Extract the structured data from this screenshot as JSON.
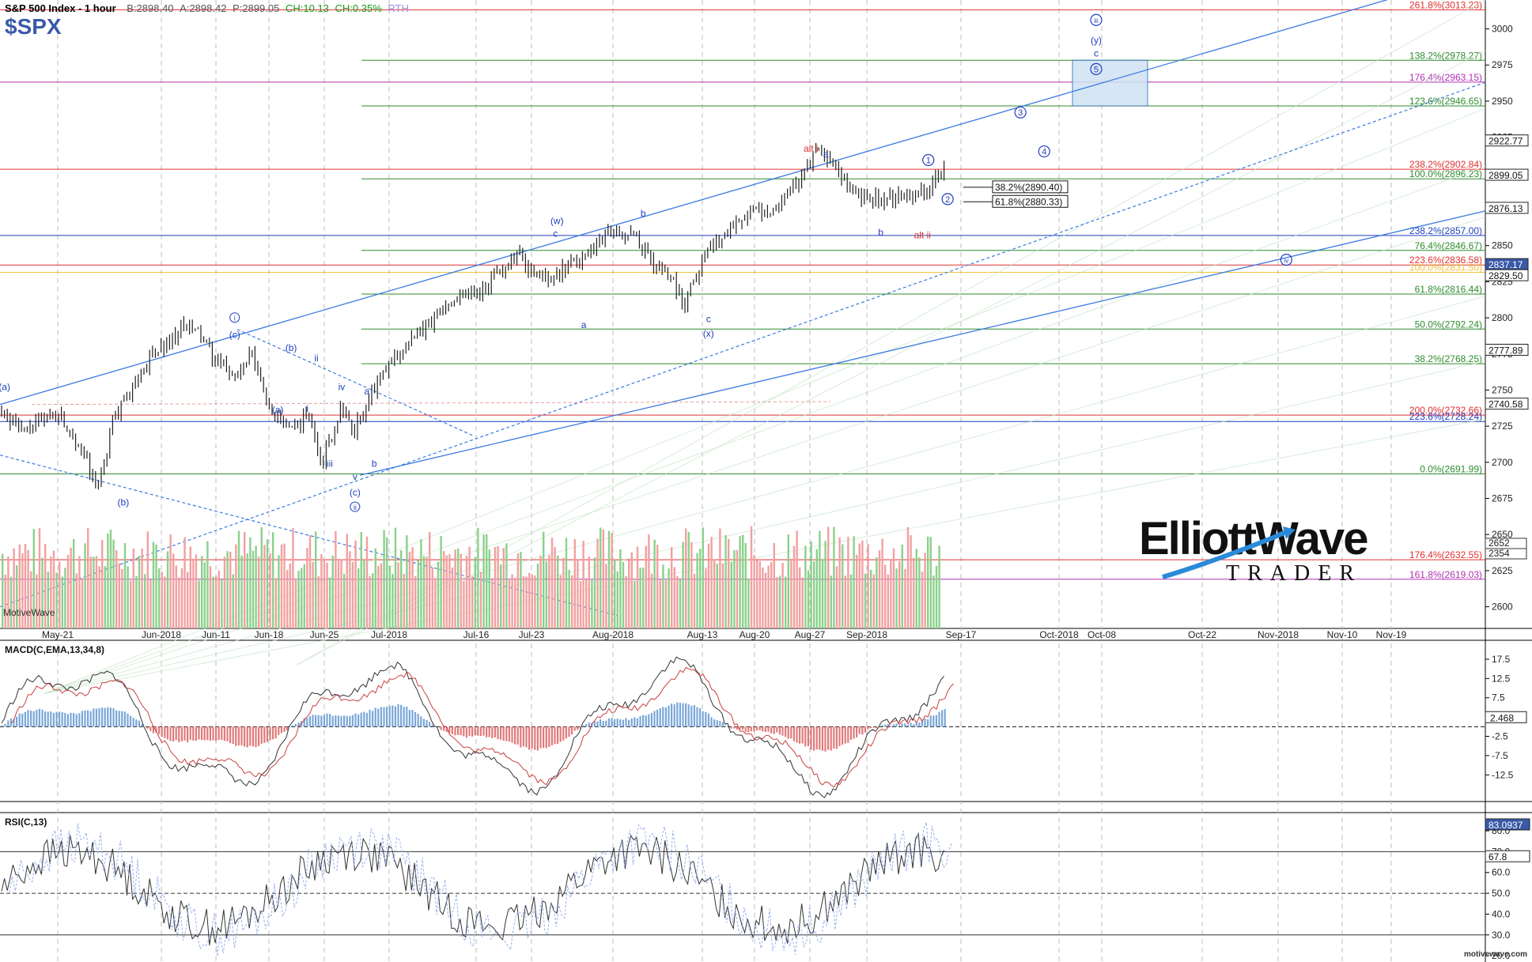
{
  "header": {
    "title": "S&P 500 Index - 1 hour",
    "symbol": "$SPX",
    "bid": "B:2898.40",
    "ask": "A:2898.42",
    "price": "P:2899.05",
    "change": "CH:10.13",
    "change_pct": "CH:0.35%",
    "session": "RTH"
  },
  "watermark": {
    "brand_top": "ElliottWave",
    "brand_bottom": "TRADER",
    "footer": "motivewave.com",
    "app": "MotiveWave"
  },
  "colors": {
    "up": "#2e7d32",
    "down": "#d32f2f",
    "wave": "#1f3fbf",
    "fib_green": "#2e8b2e",
    "fib_red": "#e03030",
    "fib_magenta": "#b030b0"
  },
  "chart_data": [
    {
      "type": "candlestick",
      "title": "S&P 500 Index - 1 hour",
      "x_ticks": [
        "May-21",
        "Jun-2018",
        "Jun-11",
        "Jun-18",
        "Jun-25",
        "Jul-2018",
        "Jul-16",
        "Jul-23",
        "Aug-2018",
        "Aug-13",
        "Aug-20",
        "Aug-27",
        "Sep-2018",
        "Sep-17",
        "Oct-2018",
        "Oct-08",
        "Oct-22",
        "Nov-2018",
        "Nov-10",
        "Nov-19"
      ],
      "ylim": [
        2585,
        3020
      ],
      "y_ticks": [
        2600,
        2625,
        2650,
        2675,
        2700,
        2725,
        2750,
        2775,
        2800,
        2825,
        2850,
        2875,
        2900,
        2925,
        2950,
        2975,
        3000
      ],
      "price_path": [
        [
          0,
          2738
        ],
        [
          0.02,
          2720
        ],
        [
          0.05,
          2735
        ],
        [
          0.07,
          2712
        ],
        [
          0.085,
          2680
        ],
        [
          0.1,
          2730
        ],
        [
          0.13,
          2770
        ],
        [
          0.16,
          2793
        ],
        [
          0.175,
          2790
        ],
        [
          0.19,
          2768
        ],
        [
          0.21,
          2760
        ],
        [
          0.22,
          2775
        ],
        [
          0.235,
          2742
        ],
        [
          0.245,
          2730
        ],
        [
          0.255,
          2720
        ],
        [
          0.27,
          2735
        ],
        [
          0.283,
          2700
        ],
        [
          0.3,
          2740
        ],
        [
          0.31,
          2720
        ],
        [
          0.325,
          2745
        ],
        [
          0.345,
          2772
        ],
        [
          0.37,
          2790
        ],
        [
          0.4,
          2815
        ],
        [
          0.425,
          2820
        ],
        [
          0.455,
          2845
        ],
        [
          0.47,
          2828
        ],
        [
          0.49,
          2830
        ],
        [
          0.51,
          2840
        ],
        [
          0.53,
          2858
        ],
        [
          0.555,
          2858
        ],
        [
          0.575,
          2837
        ],
        [
          0.59,
          2828
        ],
        [
          0.6,
          2810
        ],
        [
          0.62,
          2845
        ],
        [
          0.65,
          2870
        ],
        [
          0.68,
          2875
        ],
        [
          0.7,
          2895
        ],
        [
          0.72,
          2916
        ],
        [
          0.74,
          2895
        ],
        [
          0.76,
          2880
        ],
        [
          0.79,
          2885
        ],
        [
          0.81,
          2888
        ],
        [
          0.83,
          2902
        ]
      ],
      "right_price_labels": [
        "2922.77",
        "2899.05",
        "2876.13",
        "2837.17",
        "2829.50",
        "2777.89",
        "2740.58"
      ],
      "fib_levels": [
        {
          "label": "261.8%(3013.23)",
          "value": 3013.23,
          "color": "#e03030"
        },
        {
          "label": "138.2%(2978.27)",
          "value": 2978.27,
          "color": "#2e8b2e"
        },
        {
          "label": "176.4%(2963.15)",
          "value": 2963.15,
          "color": "#b030b0"
        },
        {
          "label": "123.6%(2946.65)",
          "value": 2946.65,
          "color": "#2e8b2e"
        },
        {
          "label": "238.2%(2902.84)",
          "value": 2902.84,
          "color": "#e03030"
        },
        {
          "label": "100.0%(2896.23)",
          "value": 2896.23,
          "color": "#2e8b2e"
        },
        {
          "label": "238.2%(2857.00)",
          "value": 2857.0,
          "color": "#1f3fbf"
        },
        {
          "label": "76.4%(2846.67)",
          "value": 2846.67,
          "color": "#2e8b2e"
        },
        {
          "label": "223.6%(2836.58)",
          "value": 2836.58,
          "color": "#e03030"
        },
        {
          "label": "100.0%(2831.50)",
          "value": 2831.5,
          "color": "#f0c040"
        },
        {
          "label": "61.8%(2816.44)",
          "value": 2816.44,
          "color": "#2e8b2e"
        },
        {
          "label": "50.0%(2792.24)",
          "value": 2792.24,
          "color": "#2e8b2e"
        },
        {
          "label": "38.2%(2768.25)",
          "value": 2768.25,
          "color": "#2e8b2e"
        },
        {
          "label": "200.0%(2732.66)",
          "value": 2732.66,
          "color": "#e03030"
        },
        {
          "label": "223.6%(2728.24)",
          "value": 2728.24,
          "color": "#1f3fbf"
        },
        {
          "label": "0.0%(2691.99)",
          "value": 2691.99,
          "color": "#2e8b2e"
        },
        {
          "label": "176.4%(2632.55)",
          "value": 2632.55,
          "color": "#e03030"
        },
        {
          "label": "161.8%(2619.03)",
          "value": 2619.03,
          "color": "#b030b0"
        }
      ],
      "retrace_boxes": [
        {
          "label": "38.2%(2890.40)",
          "value": 2890.4
        },
        {
          "label": "61.8%(2880.33)",
          "value": 2880.33
        }
      ],
      "target_box": {
        "x0": 0.885,
        "x1": 0.955,
        "y_low": 2946.65,
        "y_high": 2978.27
      },
      "wave_labels": [
        {
          "t": "(a)",
          "x": 0.003,
          "y": 2750,
          "c": "#1f3fbf"
        },
        {
          "t": "(b)",
          "x": 0.083,
          "y": 2670,
          "c": "#1f3fbf"
        },
        {
          "t": "ⓘ",
          "x": 0.158,
          "y": 2798,
          "c": "#1f3fbf",
          "circ": true
        },
        {
          "t": "(c)",
          "x": 0.158,
          "y": 2786,
          "c": "#1f3fbf"
        },
        {
          "t": "(b)",
          "x": 0.196,
          "y": 2777,
          "c": "#1f3fbf"
        },
        {
          "t": "(a)",
          "x": 0.187,
          "y": 2734,
          "c": "#1f3fbf"
        },
        {
          "t": "ii",
          "x": 0.213,
          "y": 2770,
          "c": "#1f3fbf"
        },
        {
          "t": "i",
          "x": 0.207,
          "y": 2735,
          "c": "#1f3fbf"
        },
        {
          "t": "iv",
          "x": 0.23,
          "y": 2750,
          "c": "#1f3fbf"
        },
        {
          "t": "a",
          "x": 0.247,
          "y": 2747,
          "c": "#1f3fbf"
        },
        {
          "t": "iii",
          "x": 0.222,
          "y": 2697,
          "c": "#1f3fbf"
        },
        {
          "t": "b",
          "x": 0.252,
          "y": 2697,
          "c": "#1f3fbf"
        },
        {
          "t": "v",
          "x": 0.239,
          "y": 2688,
          "c": "#1f3fbf"
        },
        {
          "t": "(c)",
          "x": 0.239,
          "y": 2677,
          "c": "#1f3fbf"
        },
        {
          "t": "ⓘⓘ",
          "x": 0.239,
          "y": 2667,
          "c": "#1f3fbf",
          "circ": true,
          "txt": "ii"
        },
        {
          "t": "(w)",
          "x": 0.375,
          "y": 2865,
          "c": "#1f3fbf"
        },
        {
          "t": "c",
          "x": 0.374,
          "y": 2856,
          "c": "#1f3fbf"
        },
        {
          "t": "a",
          "x": 0.393,
          "y": 2793,
          "c": "#1f3fbf"
        },
        {
          "t": "b",
          "x": 0.433,
          "y": 2870,
          "c": "#1f3fbf"
        },
        {
          "t": "c",
          "x": 0.477,
          "y": 2797,
          "c": "#1f3fbf"
        },
        {
          "t": "(x)",
          "x": 0.477,
          "y": 2787,
          "c": "#1f3fbf"
        },
        {
          "t": "alt i",
          "x": 0.546,
          "y": 2915,
          "c": "#d32f2f"
        },
        {
          "t": "a",
          "x": 0.556,
          "y": 2911,
          "c": "#1f3fbf"
        },
        {
          "t": "b",
          "x": 0.593,
          "y": 2857,
          "c": "#1f3fbf"
        },
        {
          "t": "alt ii",
          "x": 0.621,
          "y": 2855,
          "c": "#d32f2f"
        }
      ],
      "circle_labels": [
        {
          "t": "1",
          "x": 0.625,
          "y": 2907
        },
        {
          "t": "2",
          "x": 0.638,
          "y": 2880
        },
        {
          "t": "3",
          "x": 0.687,
          "y": 2940
        },
        {
          "t": "4",
          "x": 0.703,
          "y": 2913
        },
        {
          "t": "5",
          "x": 0.738,
          "y": 2970
        },
        {
          "t": "iii",
          "x": 0.738,
          "y": 3004
        },
        {
          "t": "iv",
          "x": 0.866,
          "y": 2838
        }
      ],
      "text_labels": [
        {
          "t": "(y)",
          "x": 0.738,
          "y": 2990
        },
        {
          "t": "c",
          "x": 0.738,
          "y": 2981
        }
      ]
    },
    {
      "type": "bar",
      "title": "Volume",
      "right_labels": [
        "2652",
        "2354"
      ]
    },
    {
      "type": "line",
      "title": "MACD(C,EMA,13,34,8)",
      "ylim": [
        -19,
        22
      ],
      "y_ticks": [
        17.5,
        12.5,
        7.5,
        2.5,
        -2.5,
        -7.5,
        -12.5
      ],
      "last_value": "2.468"
    },
    {
      "type": "line",
      "title": "RSI(C,13)",
      "ylim": [
        17,
        88
      ],
      "y_ticks": [
        80.0,
        70.0,
        60.0,
        50.0,
        40.0,
        30.0,
        20.0
      ],
      "levels": [
        70,
        50,
        30
      ],
      "last_labels": [
        "83.0937",
        "67.8"
      ]
    }
  ]
}
